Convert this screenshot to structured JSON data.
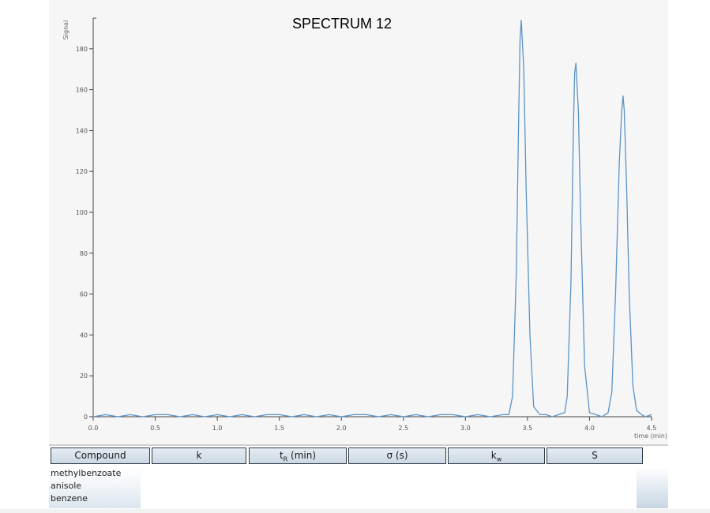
{
  "chart_data": {
    "type": "line",
    "title": "SPECTRUM 12",
    "xlabel": "time (min)",
    "ylabel": "Signal",
    "xlim": [
      0.0,
      4.5
    ],
    "ylim": [
      0,
      195
    ],
    "x_ticks": [
      0.0,
      0.5,
      1.0,
      1.5,
      2.0,
      2.5,
      3.0,
      3.5,
      4.0,
      4.5
    ],
    "x_tick_labels": [
      "0.0",
      "0.5",
      "1.0",
      "1.5",
      "2.0",
      "2.5",
      "3.0",
      "3.5",
      "4.0",
      "4.5"
    ],
    "y_ticks": [
      0,
      20,
      40,
      60,
      80,
      100,
      120,
      140,
      160,
      180
    ],
    "y_tick_labels": [
      "0",
      "20",
      "40",
      "60",
      "80",
      "100",
      "120",
      "140",
      "160",
      "180"
    ],
    "grid": false,
    "line_color": "#5b93c7",
    "series": [
      {
        "x": [
          0.0,
          0.1,
          0.2,
          0.3,
          0.4,
          0.5,
          0.6,
          0.7,
          0.8,
          0.9,
          1.0,
          1.1,
          1.2,
          1.3,
          1.4,
          1.5,
          1.6,
          1.7,
          1.8,
          1.9,
          2.0,
          2.1,
          2.2,
          2.3,
          2.4,
          2.5,
          2.6,
          2.7,
          2.8,
          2.9,
          3.0,
          3.1,
          3.2,
          3.3,
          3.35,
          3.38,
          3.41,
          3.43,
          3.44,
          3.45,
          3.47,
          3.49,
          3.52,
          3.55,
          3.6,
          3.65,
          3.7,
          3.75,
          3.8,
          3.82,
          3.85,
          3.87,
          3.88,
          3.89,
          3.91,
          3.93,
          3.96,
          4.0,
          4.05,
          4.1,
          4.15,
          4.18,
          4.21,
          4.24,
          4.26,
          4.27,
          4.28,
          4.3,
          4.32,
          4.35,
          4.38,
          4.42,
          4.45,
          4.5
        ],
        "values": [
          0,
          1,
          0,
          1,
          0,
          1,
          1,
          0,
          1,
          0,
          1,
          0,
          1,
          0,
          1,
          1,
          0,
          1,
          0,
          1,
          0,
          1,
          1,
          0,
          1,
          0,
          1,
          0,
          1,
          1,
          0,
          1,
          0,
          1,
          1,
          10,
          70,
          150,
          185,
          194,
          170,
          110,
          40,
          5,
          1,
          1,
          0,
          1,
          2,
          10,
          65,
          140,
          168,
          173,
          150,
          95,
          25,
          2,
          1,
          0,
          2,
          12,
          60,
          125,
          150,
          157,
          150,
          110,
          60,
          15,
          3,
          1,
          0,
          1
        ]
      }
    ]
  },
  "table": {
    "headers": [
      "Compound",
      "k",
      "t",
      "R",
      " (min)",
      "σ (s)",
      "k",
      "w",
      "S"
    ],
    "compounds": [
      "methylbenzoate",
      "anisole",
      "benzene"
    ]
  }
}
